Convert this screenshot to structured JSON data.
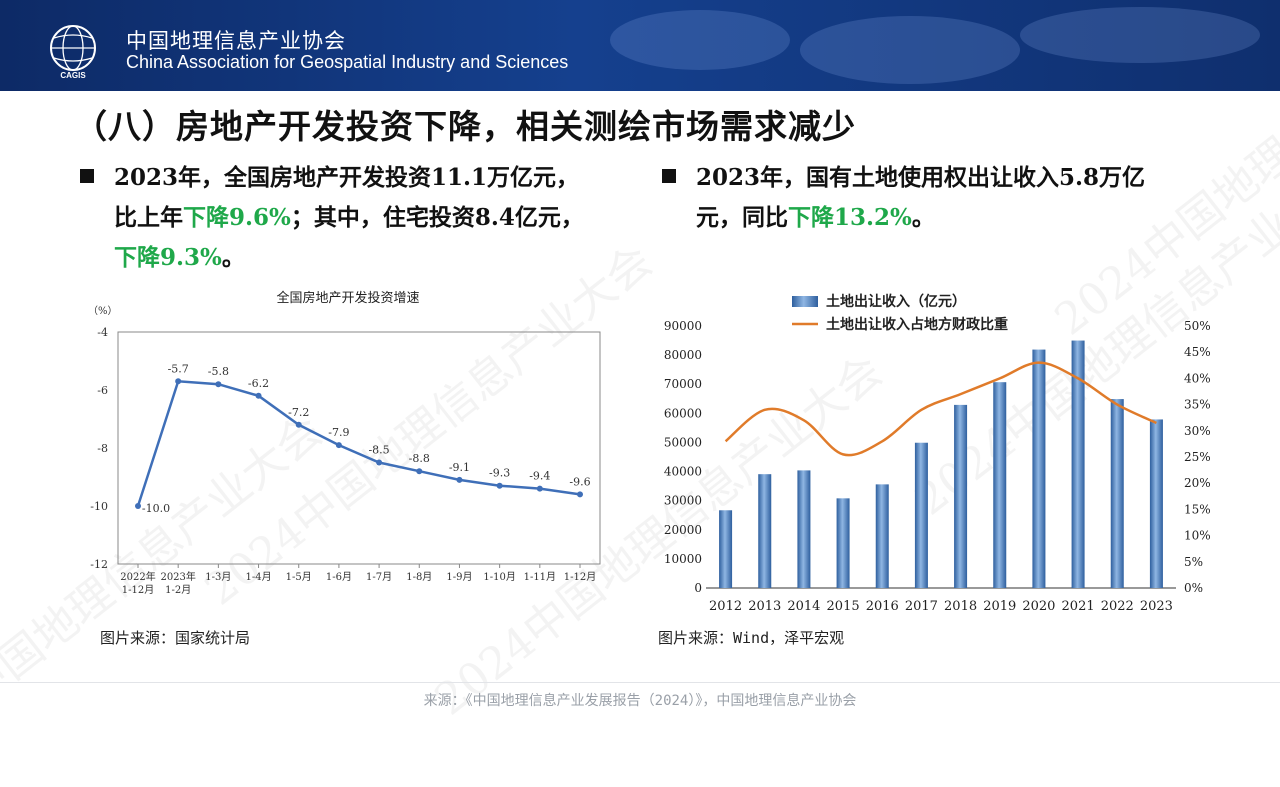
{
  "header": {
    "org_cn": "中国地理信息产业协会",
    "org_en": "China Association for Geospatial Industry and Sciences",
    "logo_text": "CAGIS"
  },
  "title": "（八）房地产开发投资下降，相关测绘市场需求减少",
  "bullet1": {
    "p1": "2023年，全国房地产开发投资11.1万亿元，",
    "p2": "比上年",
    "g1": "下降9.6%",
    "p3": "；其中，住宅投资8.4亿元，",
    "g2": "下降9.3%",
    "p4": "。"
  },
  "bullet2": {
    "p1": "2023年，国有土地使用权出让收入5.8万亿",
    "p2": "元，同比",
    "g1": "下降13.2%",
    "p3": "。"
  },
  "source1": "图片来源：国家统计局",
  "source2": "图片来源：Wind，泽平宏观",
  "footer": "来源：《中国地理信息产业发展报告（2024）》，中国地理信息产业协会",
  "watermark": "2024中国地理信息产业大会",
  "colors": {
    "green": "#1fa84a",
    "line1": "#3f6fb8",
    "bar": "#4f86c6",
    "line2": "#e07b2a"
  },
  "chart_data": [
    {
      "type": "line",
      "title": "全国房地产开发投资增速",
      "ylabel": "（%）",
      "xlabel": "",
      "categories": [
        "2022年 1-12月",
        "2023年 1-2月",
        "1-3月",
        "1-4月",
        "1-5月",
        "1-6月",
        "1-7月",
        "1-8月",
        "1-9月",
        "1-10月",
        "1-11月",
        "1-12月"
      ],
      "values": [
        -10.0,
        -5.7,
        -5.8,
        -6.2,
        -7.2,
        -7.9,
        -8.5,
        -8.8,
        -9.1,
        -9.3,
        -9.4,
        -9.6
      ],
      "data_labels": [
        "-10.0",
        "-5.7",
        "-5.8",
        "-6.2",
        "-7.2",
        "-7.9",
        "-8.5",
        "-8.8",
        "-9.1",
        "-9.3",
        "-9.4",
        "-9.6"
      ],
      "ylim": [
        -12,
        -4
      ],
      "yticks": [
        "-4",
        "-6",
        "-8",
        "-10",
        "-12"
      ],
      "grid": false
    },
    {
      "type": "bar",
      "categories": [
        "2012",
        "2013",
        "2014",
        "2015",
        "2016",
        "2017",
        "2018",
        "2019",
        "2020",
        "2021",
        "2022",
        "2023"
      ],
      "series": [
        {
          "name": "土地出让收入（亿元）",
          "type": "bar",
          "axis": "left",
          "values": [
            26700,
            39100,
            40400,
            30800,
            35600,
            49900,
            62900,
            70700,
            81900,
            85000,
            64900,
            57900
          ]
        },
        {
          "name": "土地出让收入占地方财政比重",
          "type": "line",
          "axis": "right",
          "values": [
            28,
            34,
            32,
            25.5,
            28,
            34,
            37,
            40,
            43,
            40,
            35,
            31.5
          ]
        }
      ],
      "ylim_left": [
        0,
        90000
      ],
      "yticks_left": [
        "0",
        "10000",
        "20000",
        "30000",
        "40000",
        "50000",
        "60000",
        "70000",
        "80000",
        "90000"
      ],
      "ylim_right": [
        0,
        50
      ],
      "yticks_right": [
        "0%",
        "5%",
        "10%",
        "15%",
        "20%",
        "25%",
        "30%",
        "35%",
        "40%",
        "45%",
        "50%"
      ],
      "legend": "top-left",
      "grid": false
    }
  ]
}
